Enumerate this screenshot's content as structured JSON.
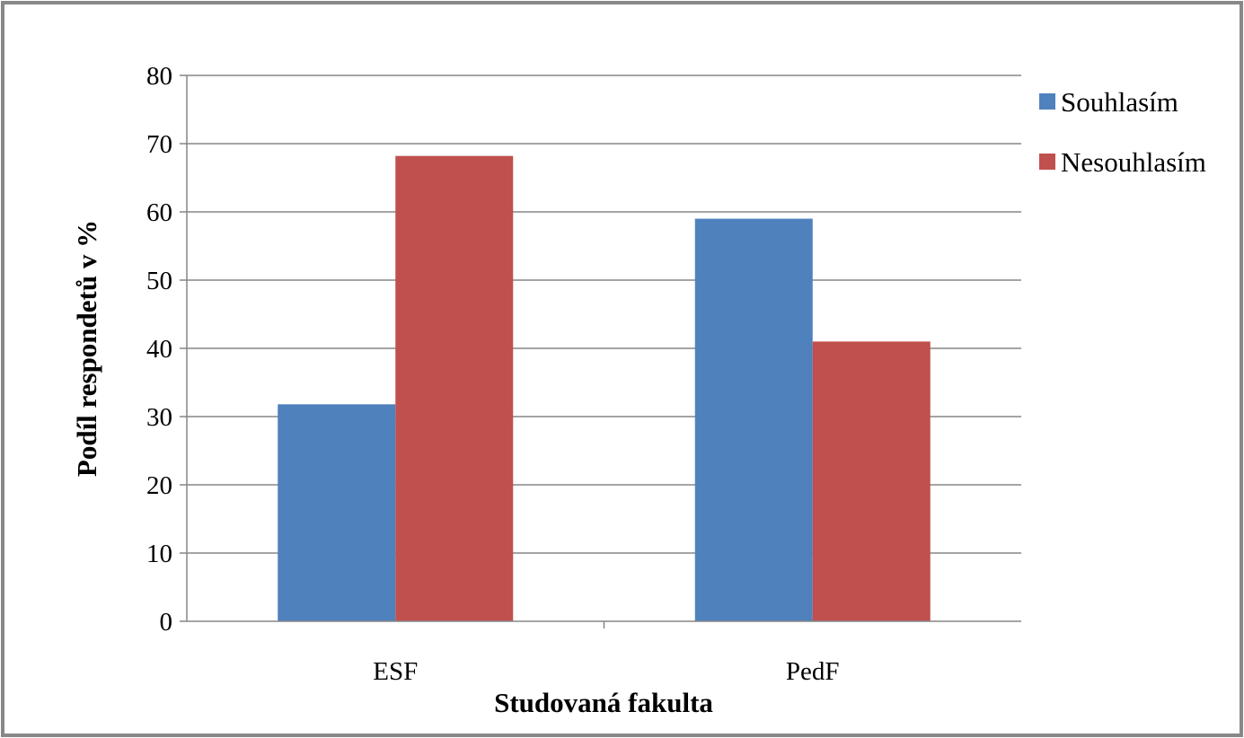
{
  "chart_data": {
    "type": "bar",
    "title": "",
    "xlabel": "Studovaná fakulta",
    "ylabel": "Podíl respondetů v %",
    "categories": [
      "ESF",
      "PedF"
    ],
    "series": [
      {
        "name": "Souhlasím",
        "values": [
          31.8,
          59.0
        ],
        "color": "#4f81bd"
      },
      {
        "name": "Nesouhlasím",
        "values": [
          68.2,
          41.0
        ],
        "color": "#c0504d"
      }
    ],
    "ylim": [
      0,
      80
    ],
    "yticks": [
      0,
      10,
      20,
      30,
      40,
      50,
      60,
      70,
      80
    ],
    "grid": true,
    "legend_position": "top-right"
  }
}
